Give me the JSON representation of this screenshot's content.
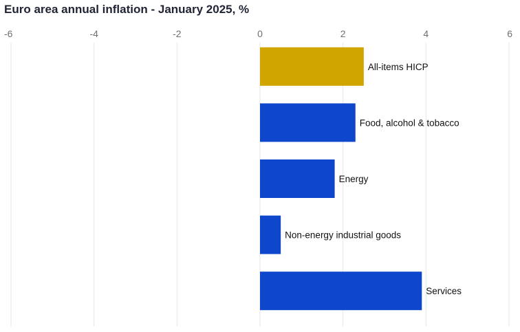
{
  "chart_data": {
    "type": "bar",
    "orientation": "horizontal",
    "title": "Euro area annual inflation - January 2025, %",
    "xlabel": "",
    "ylabel": "",
    "xlim": [
      -6,
      6
    ],
    "xticks": [
      -6,
      -4,
      -2,
      0,
      2,
      4,
      6
    ],
    "xtick_position": "top",
    "grid": "vertical",
    "legend": "none",
    "categories": [
      "All-items HICP",
      "Food, alcohol & tobacco",
      "Energy",
      "Non-energy industrial goods",
      "Services"
    ],
    "values": [
      2.5,
      2.3,
      1.8,
      0.5,
      3.9
    ],
    "colors": [
      "#d1a500",
      "#0f47cc",
      "#0f47cc",
      "#0f47cc",
      "#0f47cc"
    ]
  },
  "colors": {
    "grid": "#e6e6e6",
    "tick_text": "#6f6f6f",
    "title_text": "#1f2333"
  }
}
